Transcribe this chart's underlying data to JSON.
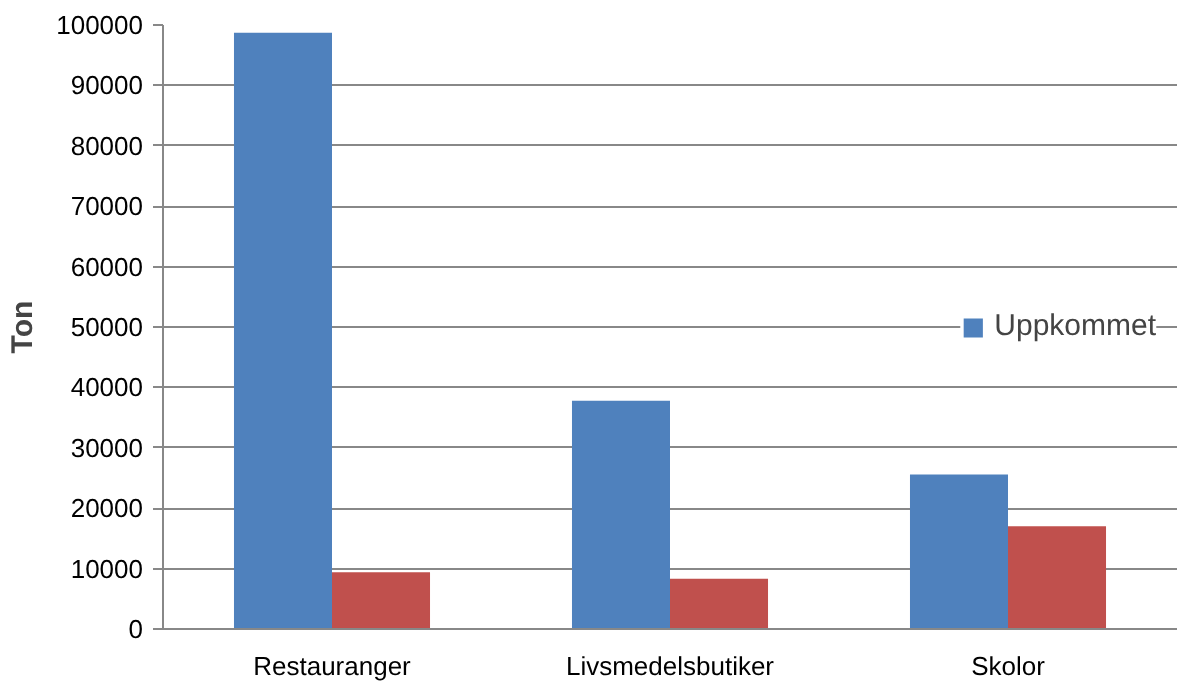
{
  "chart_data": {
    "type": "bar",
    "ylabel": "Ton",
    "categories": [
      "Restauranger",
      "Livsmedelsbutiker",
      "Skolor"
    ],
    "series": [
      {
        "name": "Uppkommet",
        "color": "#4f81bd",
        "values": [
          98700,
          37800,
          25600
        ]
      },
      {
        "color": "#c0504d",
        "values": [
          9400,
          8300,
          17000
        ]
      }
    ],
    "ylim": [
      0,
      100000
    ],
    "yticks": [
      0,
      10000,
      20000,
      30000,
      40000,
      50000,
      60000,
      70000,
      80000,
      90000,
      100000
    ],
    "grid": "y",
    "legend": "right"
  }
}
